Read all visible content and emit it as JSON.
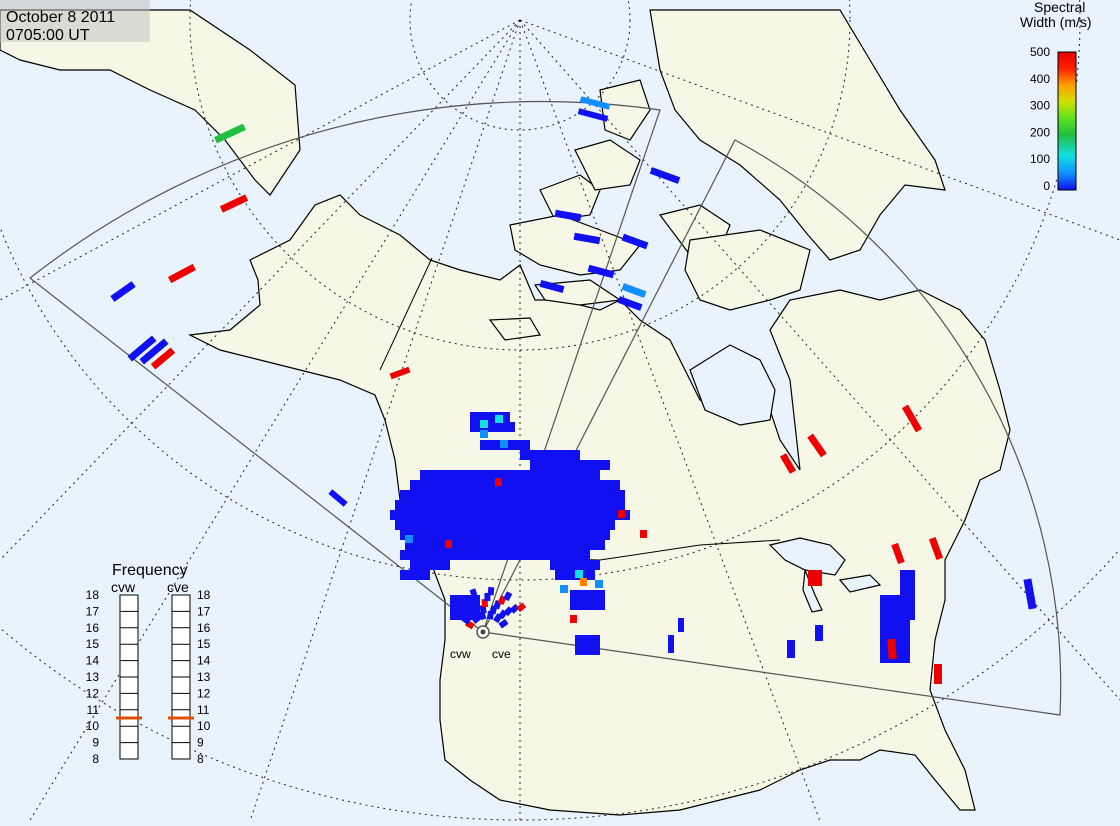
{
  "header": {
    "date": "October  8 2011",
    "time": "0705:00 UT"
  },
  "colorbar": {
    "title_line1": "Spectral",
    "title_line2": "Width (m/s)",
    "ticks": [
      "500",
      "400",
      "300",
      "200",
      "100",
      "0"
    ],
    "scale": {
      "min": 0,
      "max": 500
    },
    "colors": [
      "#1010f0",
      "#1090ff",
      "#10e0e0",
      "#20c040",
      "#60e020",
      "#d0e000",
      "#ffa000",
      "#ff2000",
      "#e00000"
    ]
  },
  "frequency": {
    "title": "Frequency",
    "radars": [
      {
        "label": "cvw",
        "value_mhz": 10.5
      },
      {
        "label": "cve",
        "value_mhz": 10.5
      }
    ],
    "ticks": [
      "18",
      "17",
      "16",
      "15",
      "14",
      "13",
      "12",
      "11",
      "10",
      "9",
      "8"
    ],
    "range": [
      8,
      18
    ],
    "marker_color": "#e05000"
  },
  "sites": {
    "cvw": "cvw",
    "cve": "cve"
  },
  "map": {
    "ocean_color": "#e8f3fb",
    "land_color": "#f7f7e8",
    "coast_color": "#000000",
    "grid_style": "dotted",
    "fov_color": "#555555"
  }
}
